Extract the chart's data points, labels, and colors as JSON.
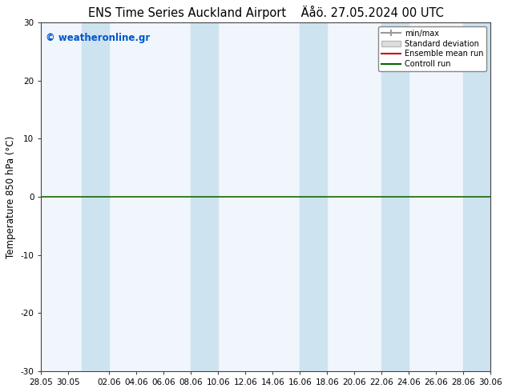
{
  "title_left": "ENS Time Series Auckland Airport",
  "title_right": "Äåö. 27.05.2024 00 UTC",
  "ylabel": "Temperature 850 hPa (°C)",
  "watermark": "© weatheronline.gr",
  "ylim": [
    -30,
    30
  ],
  "yticks": [
    -30,
    -20,
    -10,
    0,
    10,
    20,
    30
  ],
  "x_tick_labels": [
    "28.05",
    "30.05",
    "02.06",
    "04.06",
    "06.06",
    "08.06",
    "10.06",
    "12.06",
    "14.06",
    "16.06",
    "18.06",
    "20.06",
    "22.06",
    "24.06",
    "26.06",
    "28.06",
    "30.06"
  ],
  "x_tick_positions": [
    0,
    2,
    5,
    7,
    9,
    11,
    13,
    15,
    17,
    19,
    21,
    23,
    25,
    27,
    29,
    31,
    33
  ],
  "band_starts": [
    3,
    11,
    19,
    25,
    31
  ],
  "band_ends": [
    5,
    13,
    21,
    27,
    33
  ],
  "band_color": "#cde3f0",
  "background_color": "#ffffff",
  "plot_bg_color": "#f0f6fb",
  "hline_y": 0,
  "hline_color": "#1a6600",
  "legend_labels": [
    "min/max",
    "Standard deviation",
    "Ensemble mean run",
    "Controll run"
  ],
  "legend_line_colors": [
    "#999999",
    "#bbbbbb",
    "#cc0000",
    "#006600"
  ],
  "title_fontsize": 10.5,
  "watermark_color": "#0055cc",
  "axis_label_fontsize": 8.5,
  "tick_fontsize": 7.5,
  "spine_color": "#444444"
}
